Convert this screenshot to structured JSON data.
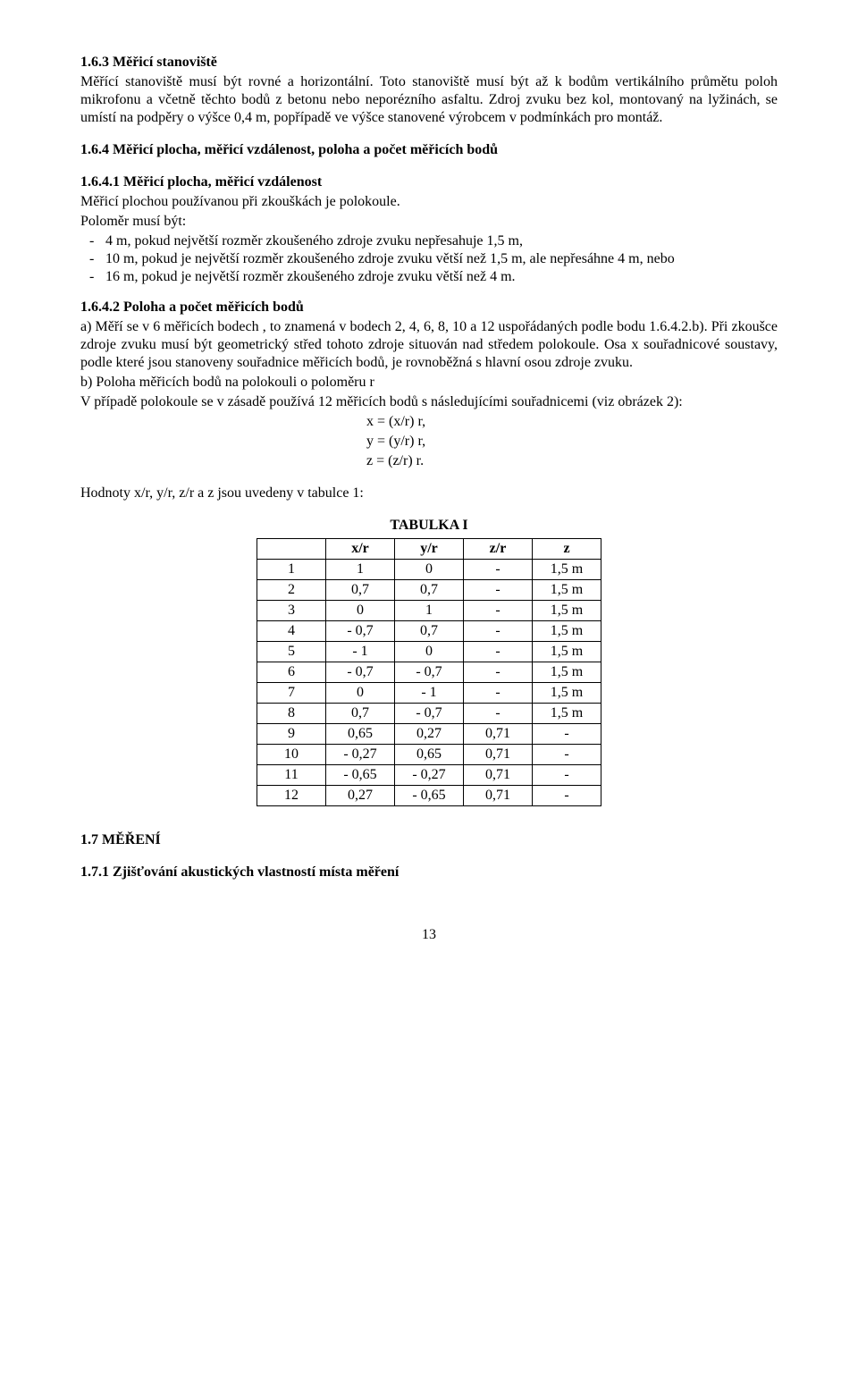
{
  "s163": {
    "heading": "1.6.3  Měřicí stanoviště",
    "p1": "Měřící stanoviště musí být rovné a horizontální. Toto stanoviště musí být až k bodům vertikálního průmětu poloh mikrofonu a včetně těchto bodů z betonu nebo neporézního asfaltu. Zdroj zvuku bez kol, montovaný na lyžinách, se umístí na podpěry o výšce 0,4 m, popřípadě ve výšce stanovené výrobcem v podmínkách pro montáž."
  },
  "s164": {
    "heading": "1.6.4 Měřicí plocha, měřicí vzdálenost, poloha a počet měřicích bodů"
  },
  "s1641": {
    "heading": "1.6.4.1 Měřicí plocha, měřicí vzdálenost",
    "p1": "Měřicí plochou používanou při zkouškách je polokoule.",
    "p2": "Poloměr musí být:",
    "li1": "4 m, pokud největší rozměr zkoušeného zdroje zvuku nepřesahuje 1,5 m,",
    "li2": "10 m, pokud je největší rozměr zkoušeného zdroje zvuku větší než 1,5 m, ale nepřesáhne 4 m, nebo",
    "li3": "16 m, pokud je největší rozměr zkoušeného zdroje zvuku větší než 4 m."
  },
  "s1642": {
    "heading": "1.6.4.2 Poloha a počet měřicích bodů",
    "pa": "a) Měří se v 6 měřicích bodech , to znamená v bodech 2, 4, 6, 8, 10 a 12 uspořádaných podle bodu 1.6.4.2.b). Při zkoušce zdroje zvuku musí být geometrický střed tohoto zdroje situován nad středem polokoule. Osa x souřadnicové soustavy, podle které jsou stanoveny souřadnice měřicích bodů, je rovnoběžná s hlavní osou zdroje zvuku.",
    "pb1": "b) Poloha měřicích bodů na polokouli o poloměru r",
    "pb2": "V případě polokoule se v zásadě používá 12 měřicích bodů s následujícími souřadnicemi (viz obrázek 2):",
    "f1": "x = (x/r) r,",
    "f2": "y = (y/r) r,",
    "f3": "z = (z/r) r.",
    "p_after": "Hodnoty x/r, y/r, z/r a z jsou uvedeny v tabulce 1:"
  },
  "table": {
    "title": "TABULKA I",
    "headers": [
      "",
      "x/r",
      "y/r",
      "z/r",
      "z"
    ],
    "rows": [
      [
        "1",
        "1",
        "0",
        "-",
        "1,5 m"
      ],
      [
        "2",
        "0,7",
        "0,7",
        "-",
        "1,5 m"
      ],
      [
        "3",
        "0",
        "1",
        "-",
        "1,5 m"
      ],
      [
        "4",
        "- 0,7",
        "0,7",
        "-",
        "1,5 m"
      ],
      [
        "5",
        "- 1",
        "0",
        "-",
        "1,5 m"
      ],
      [
        "6",
        "- 0,7",
        "- 0,7",
        "-",
        "1,5 m"
      ],
      [
        "7",
        "0",
        "- 1",
        "-",
        "1,5 m"
      ],
      [
        "8",
        "0,7",
        "- 0,7",
        "-",
        "1,5 m"
      ],
      [
        "9",
        "0,65",
        "0,27",
        "0,71",
        "-"
      ],
      [
        "10",
        "- 0,27",
        "0,65",
        "0,71",
        "-"
      ],
      [
        "11",
        "- 0,65",
        "- 0,27",
        "0,71",
        "-"
      ],
      [
        "12",
        "0,27",
        "- 0,65",
        "0,71",
        "-"
      ]
    ]
  },
  "s17": {
    "heading": "1.7   MĚŘENÍ"
  },
  "s171": {
    "heading": "1.7.1 Zjišťování akustických vlastností místa měření"
  },
  "page_number": "13"
}
